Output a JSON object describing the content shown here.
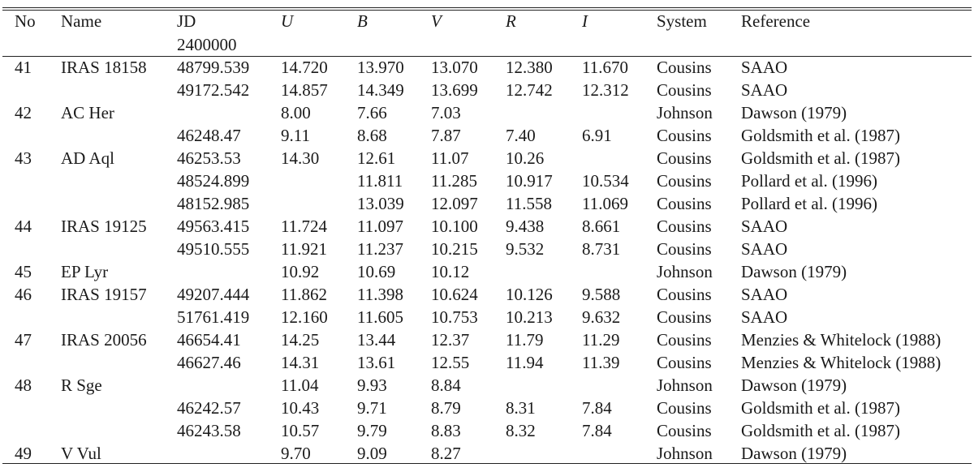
{
  "header": {
    "no": "No",
    "name": "Name",
    "jd": "JD",
    "jd_offset": "2400000",
    "u": "U",
    "b": "B",
    "v": "V",
    "r": "R",
    "i": "I",
    "system": "System",
    "reference": "Reference"
  },
  "rows": [
    {
      "no": "41",
      "name": "IRAS 18158",
      "jd": "48799.539",
      "u": "14.720",
      "b": "13.970",
      "v": "13.070",
      "r": "12.380",
      "i": "11.670",
      "system": "Cousins",
      "reference": "SAAO"
    },
    {
      "no": "",
      "name": "",
      "jd": "49172.542",
      "u": "14.857",
      "b": "14.349",
      "v": "13.699",
      "r": "12.742",
      "i": "12.312",
      "system": "Cousins",
      "reference": "SAAO"
    },
    {
      "no": "42",
      "name": "AC Her",
      "jd": "",
      "u": "8.00",
      "b": "7.66",
      "v": "7.03",
      "r": "",
      "i": "",
      "system": "Johnson",
      "reference": "Dawson (1979)"
    },
    {
      "no": "",
      "name": "",
      "jd": "46248.47",
      "u": "9.11",
      "b": "8.68",
      "v": "7.87",
      "r": "7.40",
      "i": "6.91",
      "system": "Cousins",
      "reference": "Goldsmith et al. (1987)"
    },
    {
      "no": "43",
      "name": "AD Aql",
      "jd": "46253.53",
      "u": "14.30",
      "b": "12.61",
      "v": "11.07",
      "r": "10.26",
      "i": "",
      "system": "Cousins",
      "reference": "Goldsmith et al. (1987)"
    },
    {
      "no": "",
      "name": "",
      "jd": "48524.899",
      "u": "",
      "b": "11.811",
      "v": "11.285",
      "r": "10.917",
      "i": "10.534",
      "system": "Cousins",
      "reference": "Pollard et al. (1996)"
    },
    {
      "no": "",
      "name": "",
      "jd": "48152.985",
      "u": "",
      "b": "13.039",
      "v": "12.097",
      "r": "11.558",
      "i": "11.069",
      "system": "Cousins",
      "reference": "Pollard et al. (1996)"
    },
    {
      "no": "44",
      "name": "IRAS 19125",
      "jd": "49563.415",
      "u": "11.724",
      "b": "11.097",
      "v": "10.100",
      "r": "9.438",
      "i": "8.661",
      "system": "Cousins",
      "reference": "SAAO"
    },
    {
      "no": "",
      "name": "",
      "jd": "49510.555",
      "u": "11.921",
      "b": "11.237",
      "v": "10.215",
      "r": "9.532",
      "i": "8.731",
      "system": "Cousins",
      "reference": "SAAO"
    },
    {
      "no": "45",
      "name": "EP Lyr",
      "jd": "",
      "u": "10.92",
      "b": "10.69",
      "v": "10.12",
      "r": "",
      "i": "",
      "system": "Johnson",
      "reference": "Dawson (1979)"
    },
    {
      "no": "46",
      "name": "IRAS 19157",
      "jd": "49207.444",
      "u": "11.862",
      "b": "11.398",
      "v": "10.624",
      "r": "10.126",
      "i": "9.588",
      "system": "Cousins",
      "reference": "SAAO"
    },
    {
      "no": "",
      "name": "",
      "jd": "51761.419",
      "u": "12.160",
      "b": "11.605",
      "v": "10.753",
      "r": "10.213",
      "i": "9.632",
      "system": "Cousins",
      "reference": "SAAO"
    },
    {
      "no": "47",
      "name": "IRAS 20056",
      "jd": "46654.41",
      "u": "14.25",
      "b": "13.44",
      "v": "12.37",
      "r": "11.79",
      "i": "11.29",
      "system": "Cousins",
      "reference": "Menzies & Whitelock (1988)"
    },
    {
      "no": "",
      "name": "",
      "jd": "46627.46",
      "u": "14.31",
      "b": "13.61",
      "v": "12.55",
      "r": "11.94",
      "i": "11.39",
      "system": "Cousins",
      "reference": "Menzies & Whitelock (1988)"
    },
    {
      "no": "48",
      "name": "R Sge",
      "jd": "",
      "u": "11.04",
      "b": "9.93",
      "v": "8.84",
      "r": "",
      "i": "",
      "system": "Johnson",
      "reference": "Dawson (1979)"
    },
    {
      "no": "",
      "name": "",
      "jd": "46242.57",
      "u": "10.43",
      "b": "9.71",
      "v": "8.79",
      "r": "8.31",
      "i": "7.84",
      "system": "Cousins",
      "reference": "Goldsmith et al. (1987)"
    },
    {
      "no": "",
      "name": "",
      "jd": "46243.58",
      "u": "10.57",
      "b": "9.79",
      "v": "8.83",
      "r": "8.32",
      "i": "7.84",
      "system": "Cousins",
      "reference": "Goldsmith et al. (1987)"
    },
    {
      "no": "49",
      "name": "V Vul",
      "jd": "",
      "u": "9.70",
      "b": "9.09",
      "v": "8.27",
      "r": "",
      "i": "",
      "system": "Johnson",
      "reference": "Dawson (1979)"
    }
  ]
}
